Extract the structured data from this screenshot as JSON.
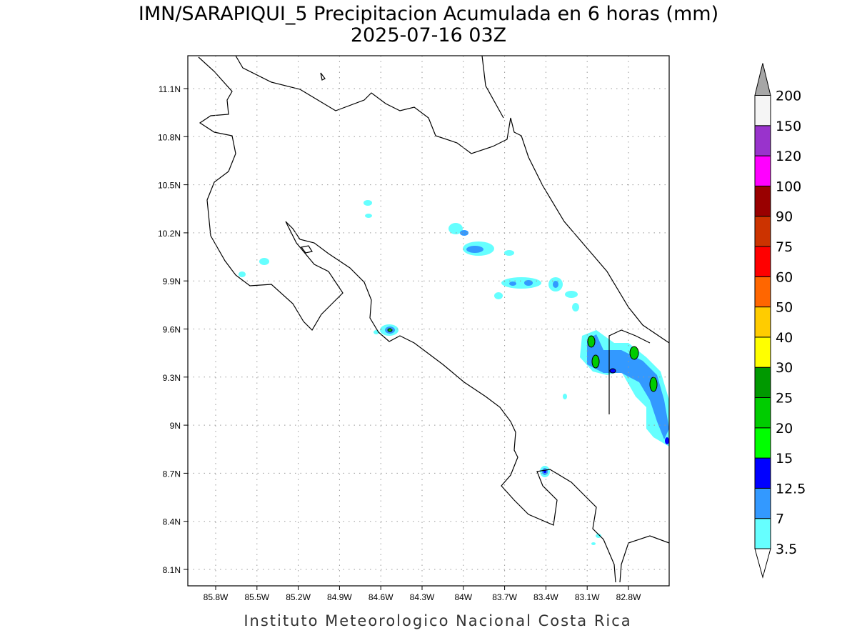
{
  "header": {
    "title": "IMN/SARAPIQUI_5 Precipitacion Acumulada en 6 horas (mm)",
    "subtitle": "2025-07-16 03Z"
  },
  "map": {
    "lat_ticks": [
      "11.1N",
      "10.8N",
      "10.5N",
      "10.2N",
      "9.9N",
      "9.6N",
      "9.3N",
      "9N",
      "8.7N",
      "8.4N",
      "8.1N"
    ],
    "lon_ticks": [
      "85.8W",
      "85.5W",
      "85.2W",
      "84.9W",
      "84.6W",
      "84.3W",
      "84W",
      "83.7W",
      "83.4W",
      "83.1W",
      "82.8W"
    ]
  },
  "colorbar": {
    "labels": [
      "3.5",
      "7",
      "12.5",
      "15",
      "20",
      "25",
      "30",
      "40",
      "50",
      "60",
      "75",
      "90",
      "100",
      "120",
      "150",
      "200"
    ],
    "colors": [
      "#66ffff",
      "#3399ff",
      "#0000ff",
      "#00ff00",
      "#00cc00",
      "#009900",
      "#ffff00",
      "#ffcc00",
      "#ff6600",
      "#ff0000",
      "#cc3300",
      "#990000",
      "#ff00ff",
      "#9933cc",
      "#f5f5f5"
    ],
    "under_color": "#ffffff",
    "over_color": "#a6a6a6"
  },
  "footer": "Instituto Meteorologico Nacional Costa Rica"
}
